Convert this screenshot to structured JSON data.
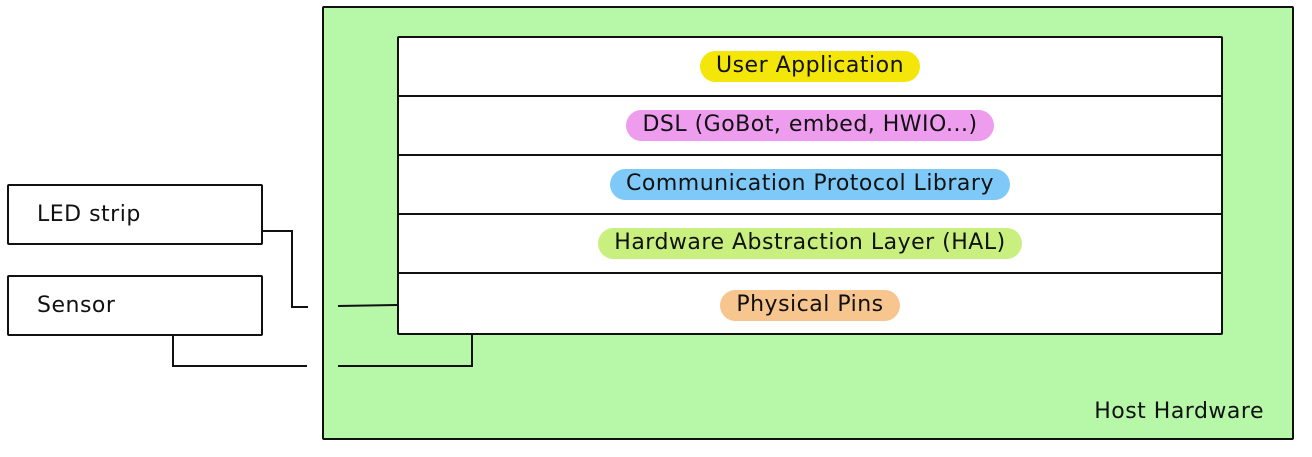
{
  "host": {
    "label": "Host Hardware",
    "fill": "#b6f7a8"
  },
  "layers": [
    {
      "label": "User Application",
      "color": "#f5e60a"
    },
    {
      "label": "DSL (GoBot, embed, HWIO...)",
      "color": "#ee9cee"
    },
    {
      "label": "Communication Protocol Library",
      "color": "#7ec9f7"
    },
    {
      "label": "Hardware Abstraction Layer (HAL)",
      "color": "#c9f07e"
    },
    {
      "label": "Physical Pins",
      "color": "#f7c58e"
    }
  ],
  "devices": [
    {
      "label": "LED strip"
    },
    {
      "label": "Sensor"
    }
  ]
}
